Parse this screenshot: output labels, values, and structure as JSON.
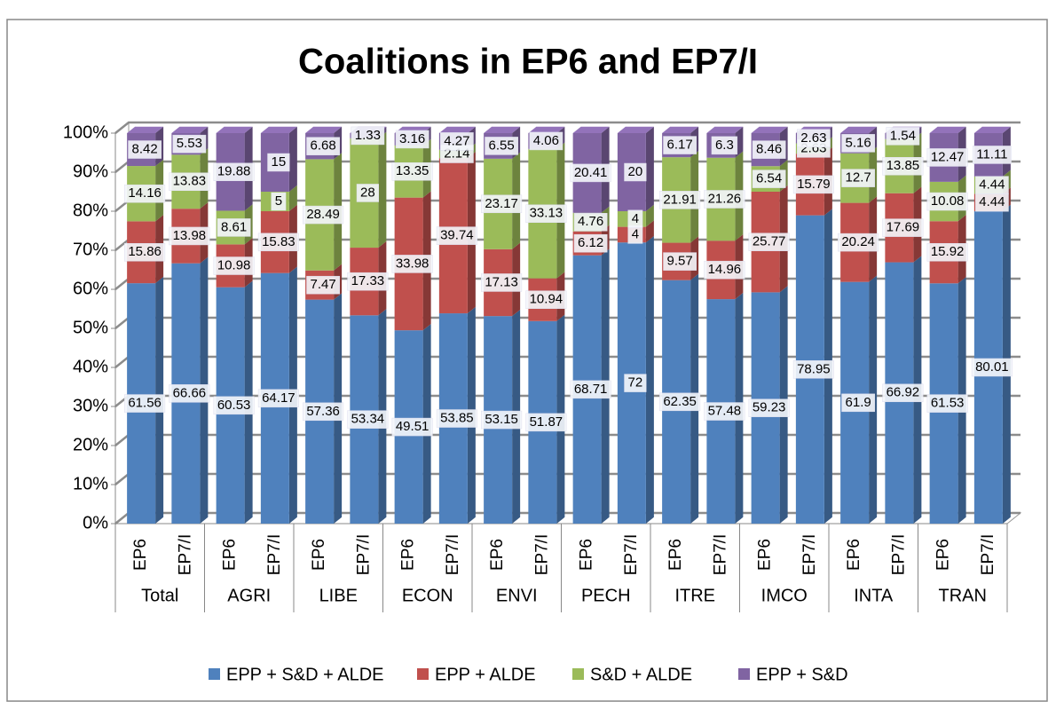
{
  "chart_data": {
    "type": "stacked_bar_3d",
    "title": "Coalitions in EP6 and EP7/I",
    "groups": [
      "Total",
      "AGRI",
      "LIBE",
      "ECON",
      "ENVI",
      "PECH",
      "ITRE",
      "IMCO",
      "INTA",
      "TRAN"
    ],
    "categories": [
      "EP6",
      "EP7/I",
      "EP6",
      "EP7/I",
      "EP6",
      "EP7/I",
      "EP6",
      "EP7/I",
      "EP6",
      "EP7/I",
      "EP6",
      "EP7/I",
      "EP6",
      "EP7/I",
      "EP6",
      "EP7/I",
      "EP6",
      "EP7/I",
      "EP6",
      "EP7/I"
    ],
    "series": [
      {
        "name": "EPP + S&D + ALDE",
        "color": "#4f81bd",
        "values": [
          61.56,
          66.66,
          60.53,
          64.17,
          57.36,
          53.34,
          49.51,
          53.85,
          53.15,
          51.87,
          68.71,
          72,
          62.35,
          57.48,
          59.23,
          78.95,
          61.9,
          66.92,
          61.53,
          80.01
        ]
      },
      {
        "name": "EPP + ALDE",
        "color": "#c0504d",
        "values": [
          15.86,
          13.98,
          10.98,
          15.83,
          7.47,
          17.33,
          33.98,
          39.74,
          17.13,
          10.94,
          6.12,
          4,
          9.57,
          14.96,
          25.77,
          15.79,
          20.24,
          17.69,
          15.92,
          4.44
        ]
      },
      {
        "name": "S&D + ALDE",
        "color": "#9bbb59",
        "values": [
          14.16,
          13.83,
          8.61,
          5,
          28.49,
          28,
          13.35,
          2.14,
          23.17,
          33.13,
          4.76,
          4,
          21.91,
          21.26,
          6.54,
          2.63,
          12.7,
          13.85,
          10.08,
          4.44
        ]
      },
      {
        "name": "EPP + S&D",
        "color": "#8064a2",
        "values": [
          8.42,
          5.53,
          19.88,
          15,
          6.68,
          1.33,
          3.16,
          4.27,
          6.55,
          4.06,
          20.41,
          20,
          6.17,
          6.3,
          8.46,
          2.63,
          5.16,
          1.54,
          12.47,
          11.11
        ]
      }
    ],
    "ylim": [
      0,
      100
    ],
    "yticks": [
      {
        "value": 0,
        "label": "0%"
      },
      {
        "value": 10,
        "label": "10%"
      },
      {
        "value": 20,
        "label": "20%"
      },
      {
        "value": 30,
        "label": "30%"
      },
      {
        "value": 40,
        "label": "40%"
      },
      {
        "value": 50,
        "label": "50%"
      },
      {
        "value": 60,
        "label": "60%"
      },
      {
        "value": 70,
        "label": "70%"
      },
      {
        "value": 80,
        "label": "80%"
      },
      {
        "value": 90,
        "label": "90%"
      },
      {
        "value": 100,
        "label": "100%"
      }
    ],
    "grid": true,
    "legend": "bottom"
  }
}
